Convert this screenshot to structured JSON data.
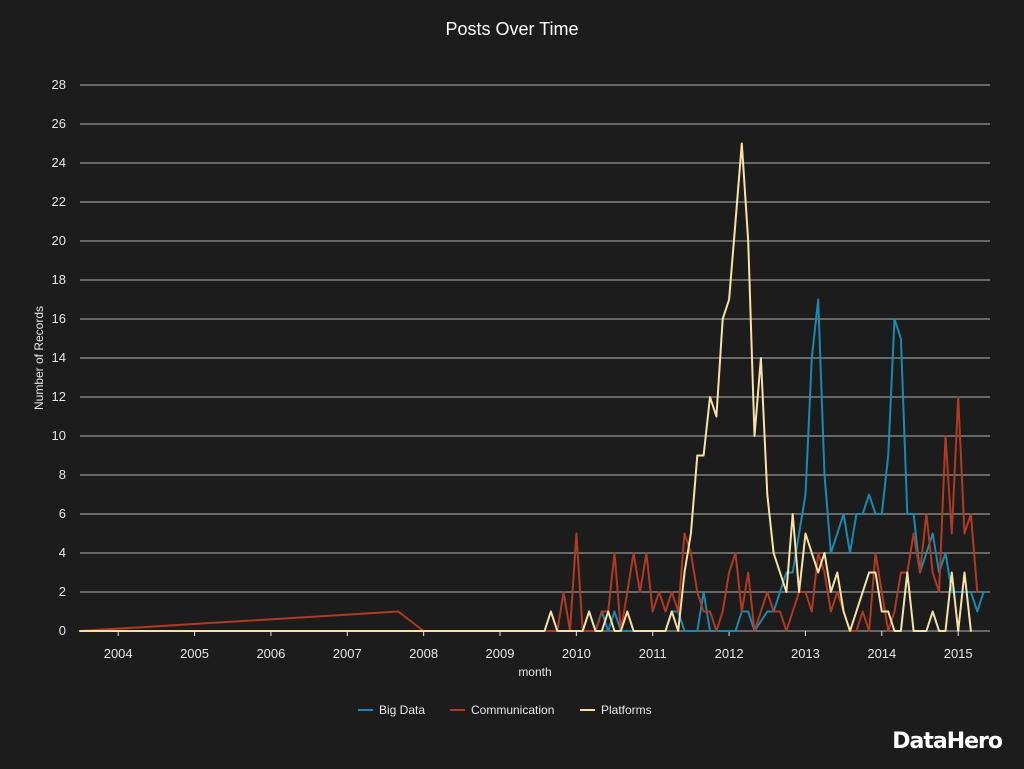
{
  "chart_data": {
    "type": "line",
    "title": "Posts Over Time",
    "xlabel": "month",
    "ylabel": "Number of Records",
    "ylim": [
      0,
      28
    ],
    "yticks": [
      0,
      2,
      4,
      6,
      8,
      10,
      12,
      14,
      16,
      18,
      20,
      22,
      24,
      26,
      28
    ],
    "xlim": [
      "2003-07",
      "2015-06"
    ],
    "xticks": [
      "2004",
      "2005",
      "2006",
      "2007",
      "2008",
      "2009",
      "2010",
      "2011",
      "2012",
      "2013",
      "2014",
      "2015"
    ],
    "grid": "horizontal",
    "legend_position": "bottom",
    "series": [
      {
        "name": "Big Data",
        "color": "#1a8ab0",
        "points": [
          [
            "2003-07",
            0
          ],
          [
            "2010-02",
            0
          ],
          [
            "2010-03",
            1
          ],
          [
            "2010-04",
            0
          ],
          [
            "2010-05",
            1
          ],
          [
            "2010-06",
            0
          ],
          [
            "2010-07",
            1
          ],
          [
            "2010-08",
            0
          ],
          [
            "2011-03",
            0
          ],
          [
            "2011-04",
            1
          ],
          [
            "2011-05",
            1
          ],
          [
            "2011-06",
            0
          ],
          [
            "2011-08",
            0
          ],
          [
            "2011-09",
            2
          ],
          [
            "2011-10",
            0
          ],
          [
            "2012-02",
            0
          ],
          [
            "2012-03",
            1
          ],
          [
            "2012-04",
            1
          ],
          [
            "2012-05",
            0
          ],
          [
            "2012-07",
            1
          ],
          [
            "2012-08",
            1
          ],
          [
            "2012-09",
            2
          ],
          [
            "2012-10",
            3
          ],
          [
            "2012-11",
            3
          ],
          [
            "2012-12",
            5
          ],
          [
            "2013-01",
            7
          ],
          [
            "2013-02",
            14
          ],
          [
            "2013-03",
            17
          ],
          [
            "2013-04",
            8
          ],
          [
            "2013-05",
            4
          ],
          [
            "2013-06",
            5
          ],
          [
            "2013-07",
            6
          ],
          [
            "2013-08",
            4
          ],
          [
            "2013-09",
            6
          ],
          [
            "2013-10",
            6
          ],
          [
            "2013-11",
            7
          ],
          [
            "2013-12",
            6
          ],
          [
            "2014-01",
            6
          ],
          [
            "2014-02",
            9
          ],
          [
            "2014-03",
            16
          ],
          [
            "2014-04",
            15
          ],
          [
            "2014-05",
            6
          ],
          [
            "2014-06",
            6
          ],
          [
            "2014-07",
            3
          ],
          [
            "2014-08",
            4
          ],
          [
            "2014-09",
            5
          ],
          [
            "2014-10",
            3
          ],
          [
            "2014-11",
            4
          ],
          [
            "2014-12",
            2
          ],
          [
            "2015-01",
            2
          ],
          [
            "2015-02",
            2
          ],
          [
            "2015-03",
            2
          ],
          [
            "2015-04",
            1
          ],
          [
            "2015-05",
            2
          ]
        ]
      },
      {
        "name": "Communication",
        "color": "#b03a22",
        "points": [
          [
            "2003-07",
            0
          ],
          [
            "2007-09",
            1
          ],
          [
            "2008-01",
            0
          ],
          [
            "2009-09",
            0
          ],
          [
            "2009-10",
            0
          ],
          [
            "2009-11",
            2
          ],
          [
            "2009-12",
            0
          ],
          [
            "2010-01",
            5
          ],
          [
            "2010-02",
            0
          ],
          [
            "2010-03",
            0
          ],
          [
            "2010-04",
            0
          ],
          [
            "2010-05",
            1
          ],
          [
            "2010-06",
            1
          ],
          [
            "2010-07",
            4
          ],
          [
            "2010-08",
            0
          ],
          [
            "2010-09",
            2
          ],
          [
            "2010-10",
            4
          ],
          [
            "2010-11",
            2
          ],
          [
            "2010-12",
            4
          ],
          [
            "2011-01",
            1
          ],
          [
            "2011-02",
            2
          ],
          [
            "2011-03",
            1
          ],
          [
            "2011-04",
            2
          ],
          [
            "2011-05",
            1
          ],
          [
            "2011-06",
            5
          ],
          [
            "2011-07",
            4
          ],
          [
            "2011-08",
            2
          ],
          [
            "2011-09",
            1
          ],
          [
            "2011-10",
            1
          ],
          [
            "2011-11",
            0
          ],
          [
            "2011-12",
            1
          ],
          [
            "2012-01",
            3
          ],
          [
            "2012-02",
            4
          ],
          [
            "2012-03",
            1
          ],
          [
            "2012-04",
            3
          ],
          [
            "2012-05",
            0
          ],
          [
            "2012-06",
            1
          ],
          [
            "2012-07",
            2
          ],
          [
            "2012-08",
            1
          ],
          [
            "2012-09",
            1
          ],
          [
            "2012-10",
            0
          ],
          [
            "2012-11",
            1
          ],
          [
            "2012-12",
            2
          ],
          [
            "2013-01",
            2
          ],
          [
            "2013-02",
            1
          ],
          [
            "2013-03",
            4
          ],
          [
            "2013-04",
            3
          ],
          [
            "2013-05",
            1
          ],
          [
            "2013-06",
            2
          ],
          [
            "2013-07",
            1
          ],
          [
            "2013-08",
            0
          ],
          [
            "2013-09",
            0
          ],
          [
            "2013-10",
            1
          ],
          [
            "2013-11",
            0
          ],
          [
            "2013-12",
            4
          ],
          [
            "2014-01",
            2
          ],
          [
            "2014-02",
            0
          ],
          [
            "2014-03",
            1
          ],
          [
            "2014-04",
            3
          ],
          [
            "2014-05",
            3
          ],
          [
            "2014-06",
            5
          ],
          [
            "2014-07",
            3
          ],
          [
            "2014-08",
            6
          ],
          [
            "2014-09",
            3
          ],
          [
            "2014-10",
            2
          ],
          [
            "2014-11",
            10
          ],
          [
            "2014-12",
            5
          ],
          [
            "2015-01",
            12
          ],
          [
            "2015-02",
            5
          ],
          [
            "2015-03",
            6
          ],
          [
            "2015-04",
            2
          ]
        ]
      },
      {
        "name": "Platforms",
        "color": "#f6e2a8",
        "points": [
          [
            "2003-07",
            0
          ],
          [
            "2009-08",
            0
          ],
          [
            "2009-09",
            1
          ],
          [
            "2009-10",
            0
          ],
          [
            "2010-02",
            0
          ],
          [
            "2010-03",
            1
          ],
          [
            "2010-04",
            0
          ],
          [
            "2010-05",
            0
          ],
          [
            "2010-06",
            1
          ],
          [
            "2010-07",
            0
          ],
          [
            "2010-08",
            0
          ],
          [
            "2010-09",
            1
          ],
          [
            "2010-10",
            0
          ],
          [
            "2011-03",
            0
          ],
          [
            "2011-04",
            1
          ],
          [
            "2011-05",
            0
          ],
          [
            "2011-06",
            3
          ],
          [
            "2011-07",
            5
          ],
          [
            "2011-08",
            9
          ],
          [
            "2011-09",
            9
          ],
          [
            "2011-10",
            12
          ],
          [
            "2011-11",
            11
          ],
          [
            "2011-12",
            16
          ],
          [
            "2012-01",
            17
          ],
          [
            "2012-02",
            21
          ],
          [
            "2012-03",
            25
          ],
          [
            "2012-04",
            20
          ],
          [
            "2012-05",
            10
          ],
          [
            "2012-06",
            14
          ],
          [
            "2012-07",
            7
          ],
          [
            "2012-08",
            4
          ],
          [
            "2012-09",
            3
          ],
          [
            "2012-10",
            2
          ],
          [
            "2012-11",
            6
          ],
          [
            "2012-12",
            2
          ],
          [
            "2013-01",
            5
          ],
          [
            "2013-02",
            4
          ],
          [
            "2013-03",
            3
          ],
          [
            "2013-04",
            4
          ],
          [
            "2013-05",
            2
          ],
          [
            "2013-06",
            3
          ],
          [
            "2013-07",
            1
          ],
          [
            "2013-08",
            0
          ],
          [
            "2013-09",
            1
          ],
          [
            "2013-10",
            2
          ],
          [
            "2013-11",
            3
          ],
          [
            "2013-12",
            3
          ],
          [
            "2014-01",
            1
          ],
          [
            "2014-02",
            1
          ],
          [
            "2014-03",
            0
          ],
          [
            "2014-04",
            0
          ],
          [
            "2014-05",
            3
          ],
          [
            "2014-06",
            0
          ],
          [
            "2014-07",
            0
          ],
          [
            "2014-08",
            0
          ],
          [
            "2014-09",
            1
          ],
          [
            "2014-10",
            0
          ],
          [
            "2014-11",
            0
          ],
          [
            "2014-12",
            3
          ],
          [
            "2015-01",
            0
          ],
          [
            "2015-02",
            3
          ],
          [
            "2015-03",
            0
          ]
        ]
      }
    ]
  },
  "branding": {
    "logo_text": "DataHero"
  }
}
